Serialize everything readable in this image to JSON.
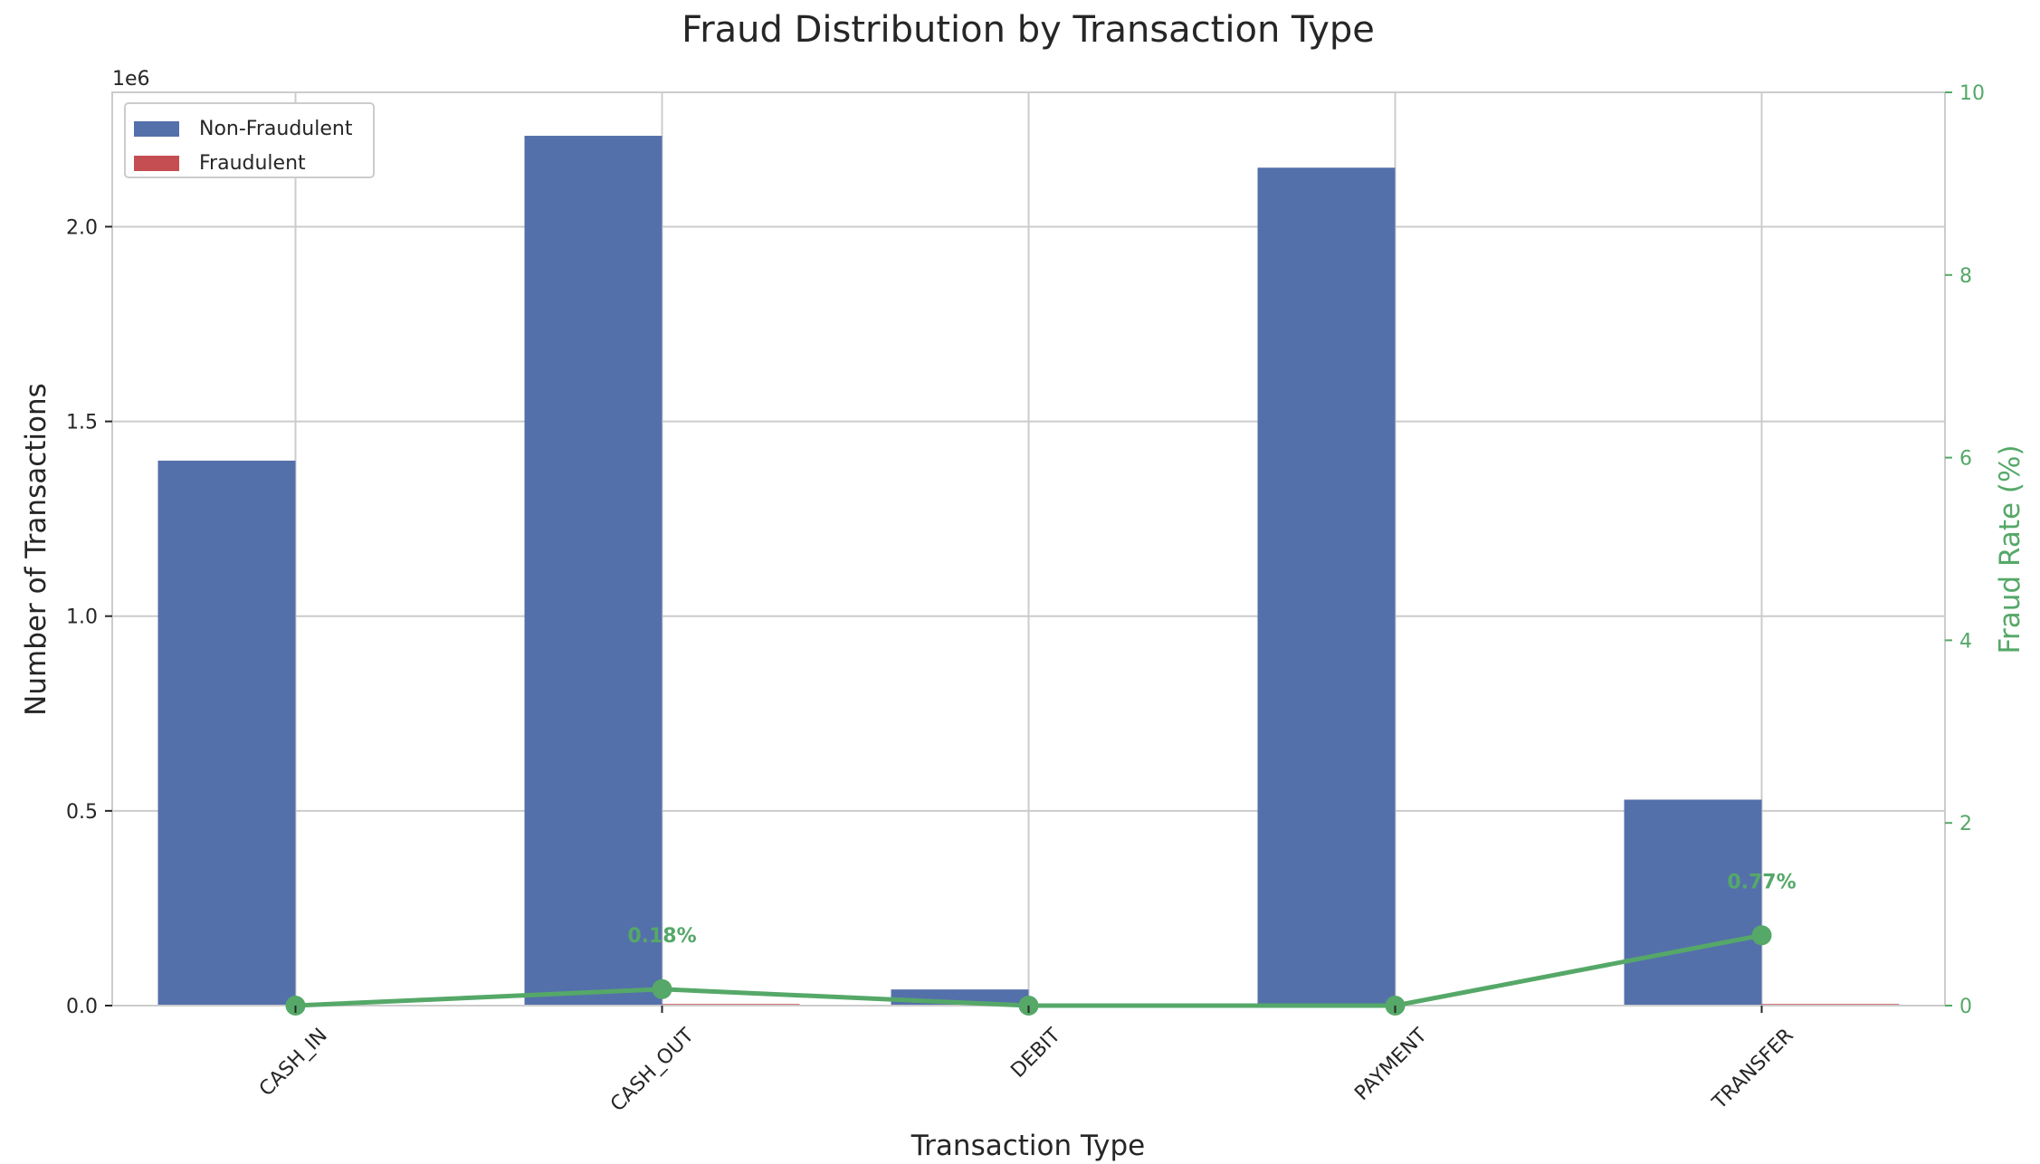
{
  "chart_data": {
    "type": "bar",
    "title": "Fraud Distribution by Transaction Type",
    "xlabel": "Transaction Type",
    "ylabel": "Number of Transactions",
    "y_multiplier": "1e6",
    "y2label": "Fraud Rate (%)",
    "categories": [
      "CASH_IN",
      "CASH_OUT",
      "DEBIT",
      "PAYMENT",
      "TRANSFER"
    ],
    "series": [
      {
        "name": "Non-Fraudulent",
        "axis": "left",
        "color": "#5470aa",
        "values": [
          1399284,
          2233384,
          41432,
          2151495,
          528812
        ]
      },
      {
        "name": "Fraudulent",
        "axis": "left",
        "color": "#c44e52",
        "values": [
          0,
          4116,
          0,
          0,
          4097
        ]
      },
      {
        "name": "",
        "type": "line",
        "axis": "right",
        "color": "#55a868",
        "values": [
          0.0,
          0.18,
          0.0,
          0.0,
          0.77
        ]
      }
    ],
    "rate_labels": [
      "",
      "0.18%",
      "",
      "",
      "0.77%"
    ],
    "ylim": [
      0,
      2345000
    ],
    "yticks": [
      0.0,
      0.5,
      1.0,
      1.5,
      2.0
    ],
    "ytick_labels": [
      "0.0",
      "0.5",
      "1.0",
      "1.5",
      "2.0"
    ],
    "y2lim": [
      0,
      10
    ],
    "y2ticks": [
      0,
      2,
      4,
      6,
      8,
      10
    ],
    "y2tick_labels": [
      "0",
      "2",
      "4",
      "6",
      "8",
      "10"
    ],
    "grid": true,
    "legend_position": "top-left",
    "colors": {
      "right_axis": "#55a868",
      "grid": "#cccccc",
      "text": "#262626"
    }
  }
}
